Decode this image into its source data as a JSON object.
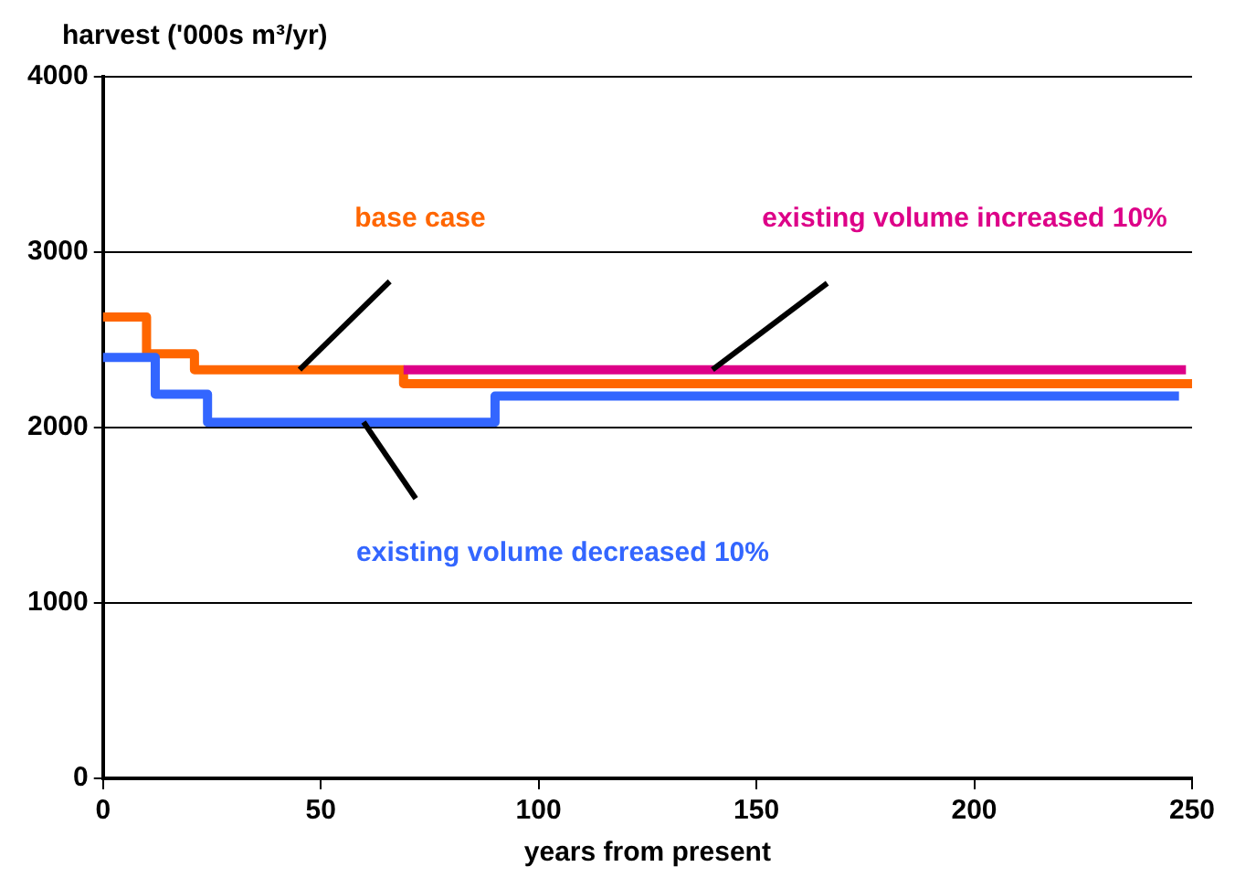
{
  "chart_data": {
    "type": "step",
    "ylabel": "harvest ('000s m³/yr)",
    "xlabel": "years from present",
    "xlim": [
      0,
      250
    ],
    "xticks": [
      0,
      50,
      100,
      150,
      200,
      250
    ],
    "ylim": [
      0,
      4000
    ],
    "yticks": [
      0,
      1000,
      2000,
      3000,
      4000
    ],
    "grid": "y",
    "legend": false,
    "marker": "none",
    "line_style": "solid",
    "series": [
      {
        "name": "existing volume decreased 10%",
        "color": "#3366ff",
        "x": [
          0,
          12,
          24,
          90,
          247
        ],
        "values": [
          2400,
          2190,
          2030,
          2180,
          2180
        ]
      },
      {
        "name": "existing volume increased 10%",
        "color": "#dd0088",
        "x": [
          69,
          248.6
        ],
        "values": [
          2330,
          2330
        ]
      },
      {
        "name": "base case",
        "color": "#ff6600",
        "x": [
          0,
          10,
          21,
          69,
          250
        ],
        "values": [
          2630,
          2420,
          2330,
          2250,
          2250
        ]
      }
    ]
  }
}
